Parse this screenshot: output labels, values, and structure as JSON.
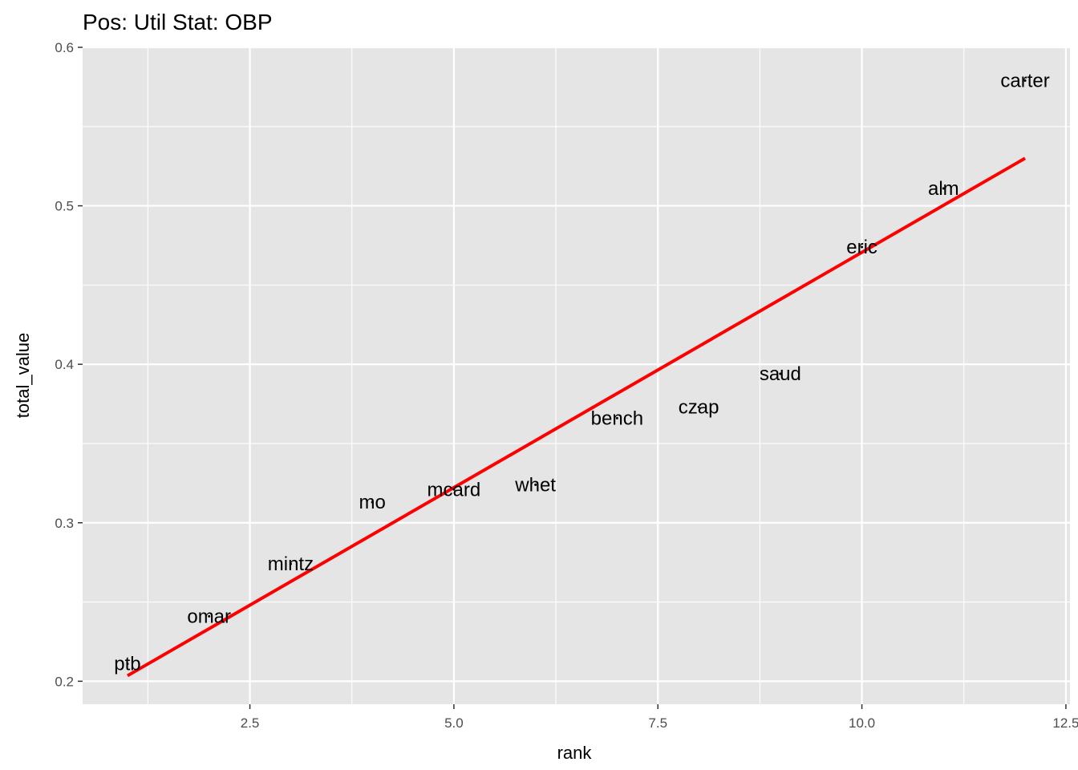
{
  "chart_data": {
    "type": "scatter",
    "title": "Pos: Util Stat: OBP",
    "xlabel": "rank",
    "ylabel": "total_value",
    "xlim": [
      0.45,
      12.55
    ],
    "ylim": [
      0.1855,
      0.6
    ],
    "x_ticks": [
      2.5,
      5.0,
      7.5,
      10.0,
      12.5
    ],
    "x_tick_labels": [
      "2.5",
      "5.0",
      "7.5",
      "10.0",
      "12.5"
    ],
    "y_ticks": [
      0.2,
      0.3,
      0.4,
      0.5,
      0.6
    ],
    "y_tick_labels": [
      "0.2",
      "0.3",
      "0.4",
      "0.5",
      "0.6"
    ],
    "grid": true,
    "background": "#e5e5e5",
    "points": [
      {
        "label": "ptb",
        "x": 1,
        "y": 0.211
      },
      {
        "label": "omar",
        "x": 2,
        "y": 0.241
      },
      {
        "label": "mintz",
        "x": 3,
        "y": 0.274
      },
      {
        "label": "mo",
        "x": 4,
        "y": 0.313
      },
      {
        "label": "mcard",
        "x": 5,
        "y": 0.321
      },
      {
        "label": "whet",
        "x": 6,
        "y": 0.324
      },
      {
        "label": "bench",
        "x": 7,
        "y": 0.366
      },
      {
        "label": "czap",
        "x": 8,
        "y": 0.373
      },
      {
        "label": "saud",
        "x": 9,
        "y": 0.394
      },
      {
        "label": "eric",
        "x": 10,
        "y": 0.474
      },
      {
        "label": "alm",
        "x": 11,
        "y": 0.511
      },
      {
        "label": "carter",
        "x": 12,
        "y": 0.579
      }
    ],
    "trend_line": {
      "color": "#ff0000",
      "x": [
        1,
        12
      ],
      "y": [
        0.2035,
        0.53
      ]
    }
  }
}
